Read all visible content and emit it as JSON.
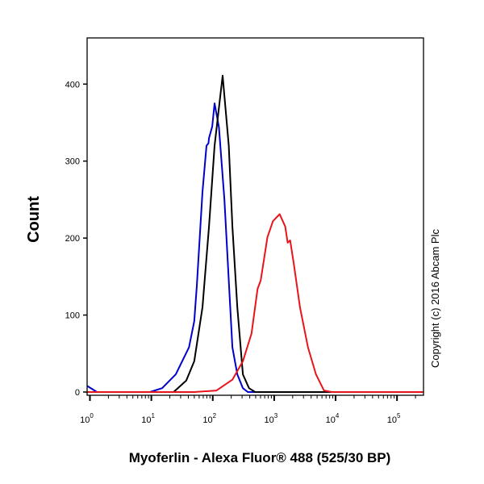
{
  "chart_data": {
    "type": "line",
    "xlabel": "Myoferlin - Alexa Fluor® 488 (525/30 BP)",
    "ylabel": "Count",
    "x_scale": "log",
    "xlim": [
      0.9,
      270000
    ],
    "ylim": [
      0,
      460
    ],
    "x_ticks": {
      "base": "10",
      "exponents": [
        "0",
        "1",
        "2",
        "3",
        "4",
        "5"
      ]
    },
    "y_ticks": [
      "0",
      "100",
      "200",
      "300",
      "400"
    ],
    "y_tick_values": [
      0,
      100,
      200,
      300,
      400
    ],
    "grid": false,
    "annotation": "Copyright (c) 2016 Abcam Plc",
    "series": [
      {
        "color": "#0000cc",
        "points": [
          [
            0.9,
            8
          ],
          [
            1.3,
            0
          ],
          [
            9.5,
            0
          ],
          [
            15,
            5
          ],
          [
            25,
            23
          ],
          [
            41,
            58
          ],
          [
            50,
            92
          ],
          [
            55,
            138
          ],
          [
            68,
            260
          ],
          [
            79,
            320
          ],
          [
            85,
            323
          ],
          [
            87,
            330
          ],
          [
            98,
            345
          ],
          [
            107,
            375
          ],
          [
            126,
            344
          ],
          [
            155,
            250
          ],
          [
            182,
            145
          ],
          [
            209,
            58
          ],
          [
            251,
            23
          ],
          [
            309,
            5
          ],
          [
            372,
            0
          ],
          [
            270000,
            0
          ]
        ]
      },
      {
        "color": "#000000",
        "points": [
          [
            0.9,
            0
          ],
          [
            23,
            0
          ],
          [
            37,
            15
          ],
          [
            50,
            40
          ],
          [
            68,
            110
          ],
          [
            87,
            215
          ],
          [
            107,
            320
          ],
          [
            145,
            411
          ],
          [
            182,
            320
          ],
          [
            209,
            215
          ],
          [
            251,
            110
          ],
          [
            309,
            23
          ],
          [
            389,
            5
          ],
          [
            490,
            0
          ],
          [
            270000,
            0
          ]
        ]
      },
      {
        "color": "#e8141b",
        "points": [
          [
            0.9,
            0
          ],
          [
            50,
            0
          ],
          [
            115,
            2
          ],
          [
            209,
            16
          ],
          [
            309,
            40
          ],
          [
            427,
            76
          ],
          [
            537,
            134
          ],
          [
            603,
            145
          ],
          [
            776,
            201
          ],
          [
            955,
            222
          ],
          [
            1230,
            231
          ],
          [
            1514,
            215
          ],
          [
            1660,
            194
          ],
          [
            1820,
            197
          ],
          [
            2090,
            166
          ],
          [
            2630,
            110
          ],
          [
            3550,
            58
          ],
          [
            4790,
            23
          ],
          [
            6460,
            2
          ],
          [
            8710,
            0
          ],
          [
            270000,
            0
          ]
        ]
      }
    ]
  }
}
